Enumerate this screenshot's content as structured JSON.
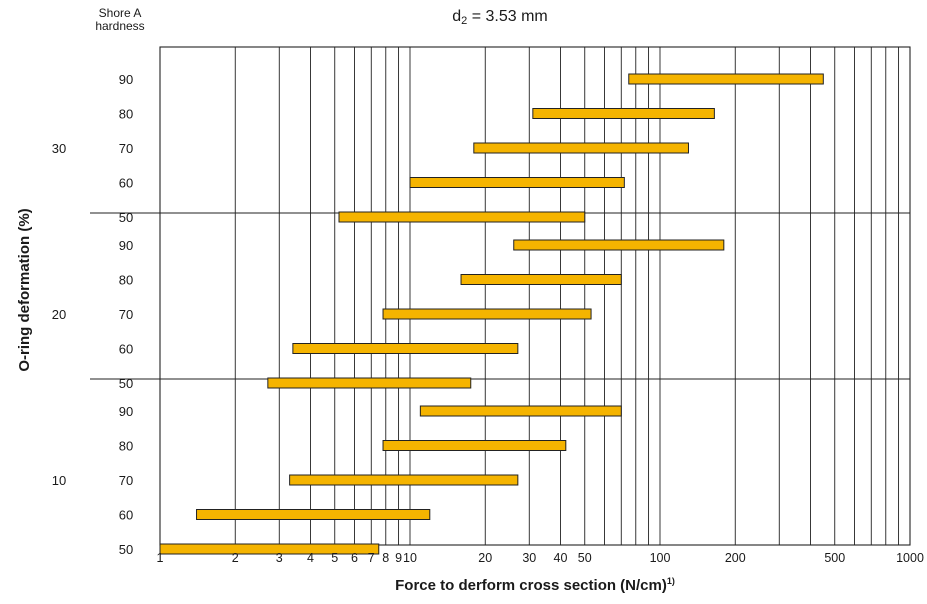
{
  "header": {
    "corner_label_line1": "Shore A",
    "corner_label_line2": "hardness",
    "title_main": "d",
    "title_sub": "2",
    "title_rest": " = 3.53 mm"
  },
  "chart_data": {
    "type": "bar",
    "orientation": "horizontal-range",
    "xscale": "log",
    "xlim": [
      1,
      1000
    ],
    "xticks": [
      1,
      2,
      3,
      4,
      5,
      6,
      7,
      8,
      9,
      10,
      20,
      30,
      40,
      50,
      100,
      200,
      500,
      1000
    ],
    "xtick_labels": [
      "1",
      "2",
      "3",
      "4",
      "5",
      "6",
      "7",
      "8",
      "9",
      "10",
      "20",
      "30",
      "40",
      "50",
      "100",
      "200",
      "500",
      "1000"
    ],
    "xlabel_main": "Force to derform cross section (N/cm)",
    "xlabel_sup": "1)",
    "ylabel": "O-ring deformation (%)",
    "grid": true,
    "bar_color": "#f5b400",
    "groups": [
      {
        "deformation": "30",
        "bars": [
          {
            "hardness": "90",
            "min": 75,
            "max": 450
          },
          {
            "hardness": "80",
            "min": 31,
            "max": 165
          },
          {
            "hardness": "70",
            "min": 18,
            "max": 130
          },
          {
            "hardness": "60",
            "min": 10,
            "max": 72
          },
          {
            "hardness": "50",
            "min": 5.2,
            "max": 50
          }
        ]
      },
      {
        "deformation": "20",
        "bars": [
          {
            "hardness": "90",
            "min": 26,
            "max": 180
          },
          {
            "hardness": "80",
            "min": 16,
            "max": 70
          },
          {
            "hardness": "70",
            "min": 7.8,
            "max": 53
          },
          {
            "hardness": "60",
            "min": 3.4,
            "max": 27
          },
          {
            "hardness": "50",
            "min": 2.7,
            "max": 17.5
          }
        ]
      },
      {
        "deformation": "10",
        "bars": [
          {
            "hardness": "90",
            "min": 11,
            "max": 70
          },
          {
            "hardness": "80",
            "min": 7.8,
            "max": 42
          },
          {
            "hardness": "70",
            "min": 3.3,
            "max": 27
          },
          {
            "hardness": "60",
            "min": 1.4,
            "max": 12
          },
          {
            "hardness": "50",
            "min": 1,
            "max": 7.5
          }
        ]
      }
    ]
  }
}
